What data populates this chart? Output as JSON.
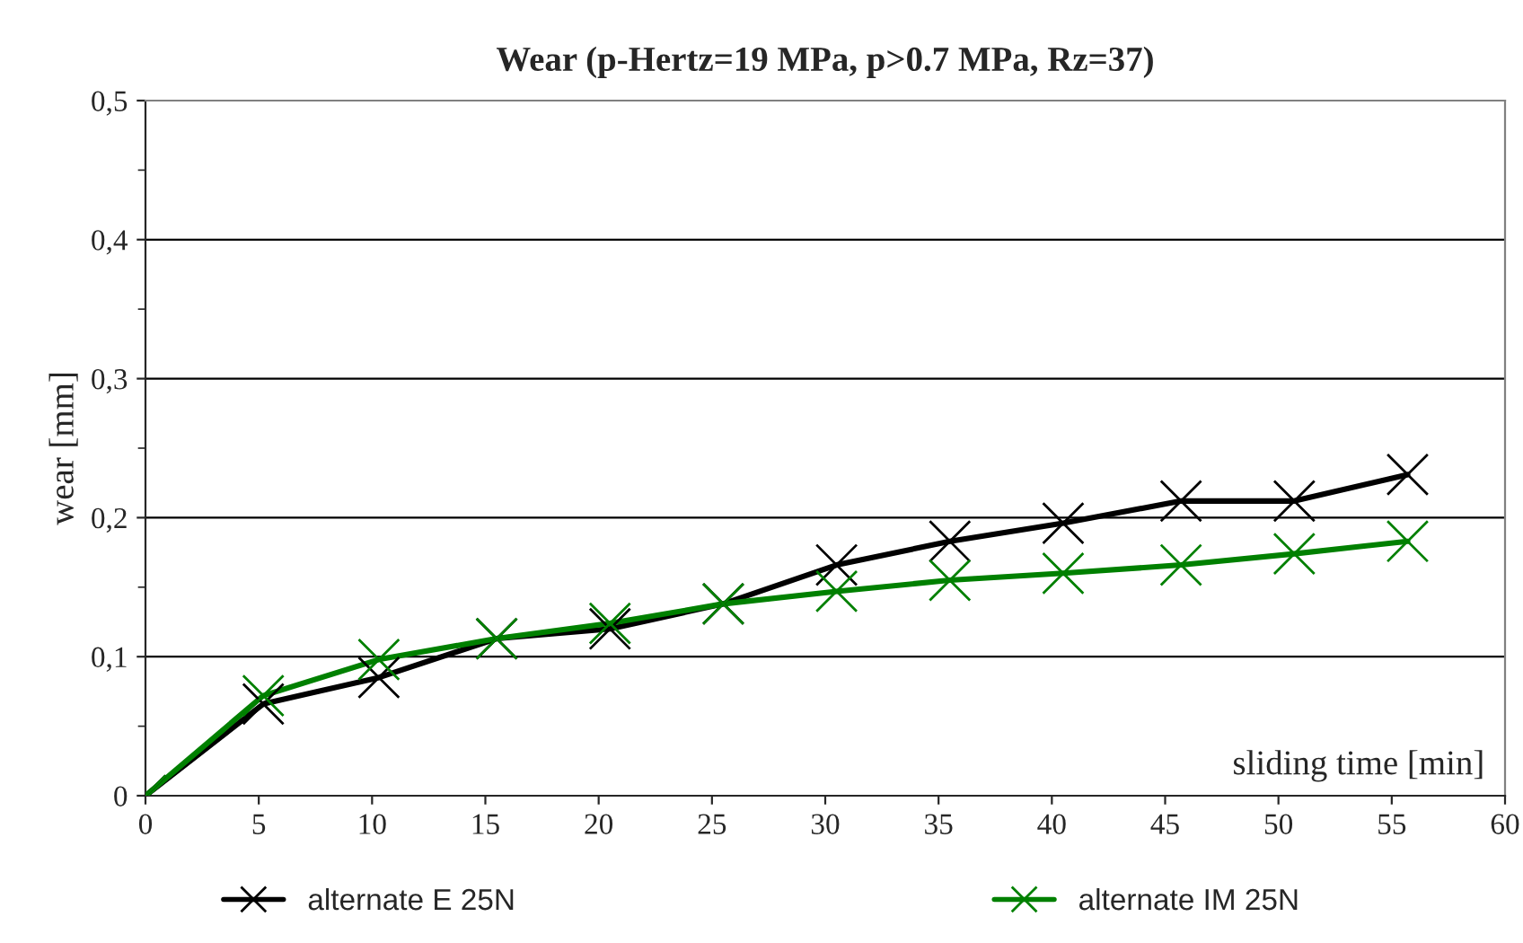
{
  "chart_data": {
    "type": "line",
    "title": "Wear (p-Hertz=19 MPa, p>0.7 MPa, Rz=37)",
    "xlabel": "sliding time [min]",
    "ylabel": "wear [mm]",
    "x": [
      0,
      5.2,
      10.3,
      15.5,
      20.5,
      25.5,
      30.5,
      35.5,
      40.5,
      45.7,
      50.7,
      55.7
    ],
    "series": [
      {
        "name": "alternate E 25N",
        "color": "#000000",
        "values": [
          0,
          0.066,
          0.085,
          0.113,
          0.12,
          0.138,
          0.166,
          0.183,
          0.196,
          0.212,
          0.212,
          0.231
        ]
      },
      {
        "name": "alternate IM 25N",
        "color": "#008000",
        "values": [
          0,
          0.072,
          0.098,
          0.113,
          0.124,
          0.138,
          0.147,
          0.155,
          0.16,
          0.166,
          0.174,
          0.183
        ]
      }
    ],
    "xlim": [
      0,
      60
    ],
    "xticks": [
      0,
      5,
      10,
      15,
      20,
      25,
      30,
      35,
      40,
      45,
      50,
      55,
      60
    ],
    "ylim": [
      0,
      0.5
    ],
    "yticks": [
      0,
      {
        "value": 0.1,
        "label": "0,1"
      },
      {
        "value": 0.2,
        "label": "0,2"
      },
      {
        "value": 0.3,
        "label": "0,3"
      },
      {
        "value": 0.4,
        "label": "0,4"
      },
      {
        "value": 0.5,
        "label": "0,5"
      }
    ],
    "grid": "y",
    "legend": "bottom",
    "marker": "cross",
    "line_style": "solid"
  }
}
